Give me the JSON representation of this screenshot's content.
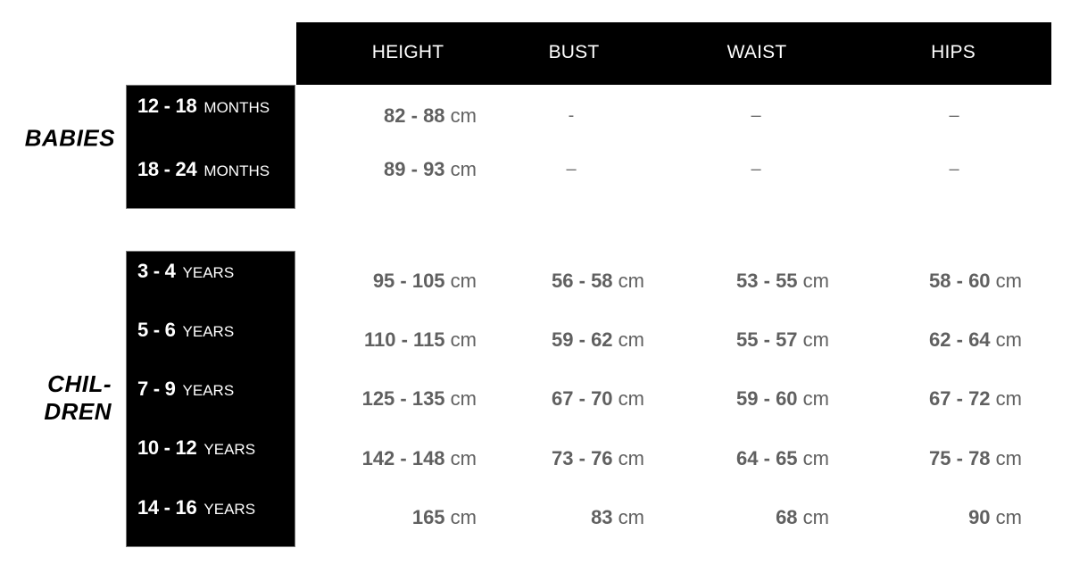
{
  "header": {
    "columns": [
      "HEIGHT",
      "BUST",
      "WAIST",
      "HIPS"
    ]
  },
  "groups": [
    {
      "label": "BABIES",
      "rows": [
        {
          "range": "12 - 18",
          "unit": "MONTHS",
          "values": [
            "82 - 88",
            "-",
            "–",
            "–"
          ]
        },
        {
          "range": "18 - 24",
          "unit": "MONTHS",
          "values": [
            "89 - 93",
            "–",
            "–",
            "–"
          ]
        }
      ]
    },
    {
      "label_line1": "CHIL-",
      "label_line2": "DREN",
      "rows": [
        {
          "range": "3 - 4",
          "unit": "YEARS",
          "values": [
            "95 - 105",
            "56 - 58",
            "53 - 55",
            "58 - 60"
          ]
        },
        {
          "range": "5 - 6",
          "unit": "YEARS",
          "values": [
            "110 - 115",
            "59 - 62",
            "55 - 57",
            "62 - 64"
          ]
        },
        {
          "range": "7 - 9",
          "unit": "YEARS",
          "values": [
            "125 - 135",
            "67 - 70",
            "59 - 60",
            "67 - 72"
          ]
        },
        {
          "range": "10 - 12",
          "unit": "YEARS",
          "values": [
            "142 - 148",
            "73 - 76",
            "64 - 65",
            "75 - 78"
          ]
        },
        {
          "range": "14 - 16",
          "unit": "YEARS",
          "values": [
            "165",
            "83",
            "68",
            "90"
          ]
        }
      ]
    }
  ],
  "value_unit": "cm",
  "colors": {
    "header_bg": "#000000",
    "value_text": "#606060"
  }
}
